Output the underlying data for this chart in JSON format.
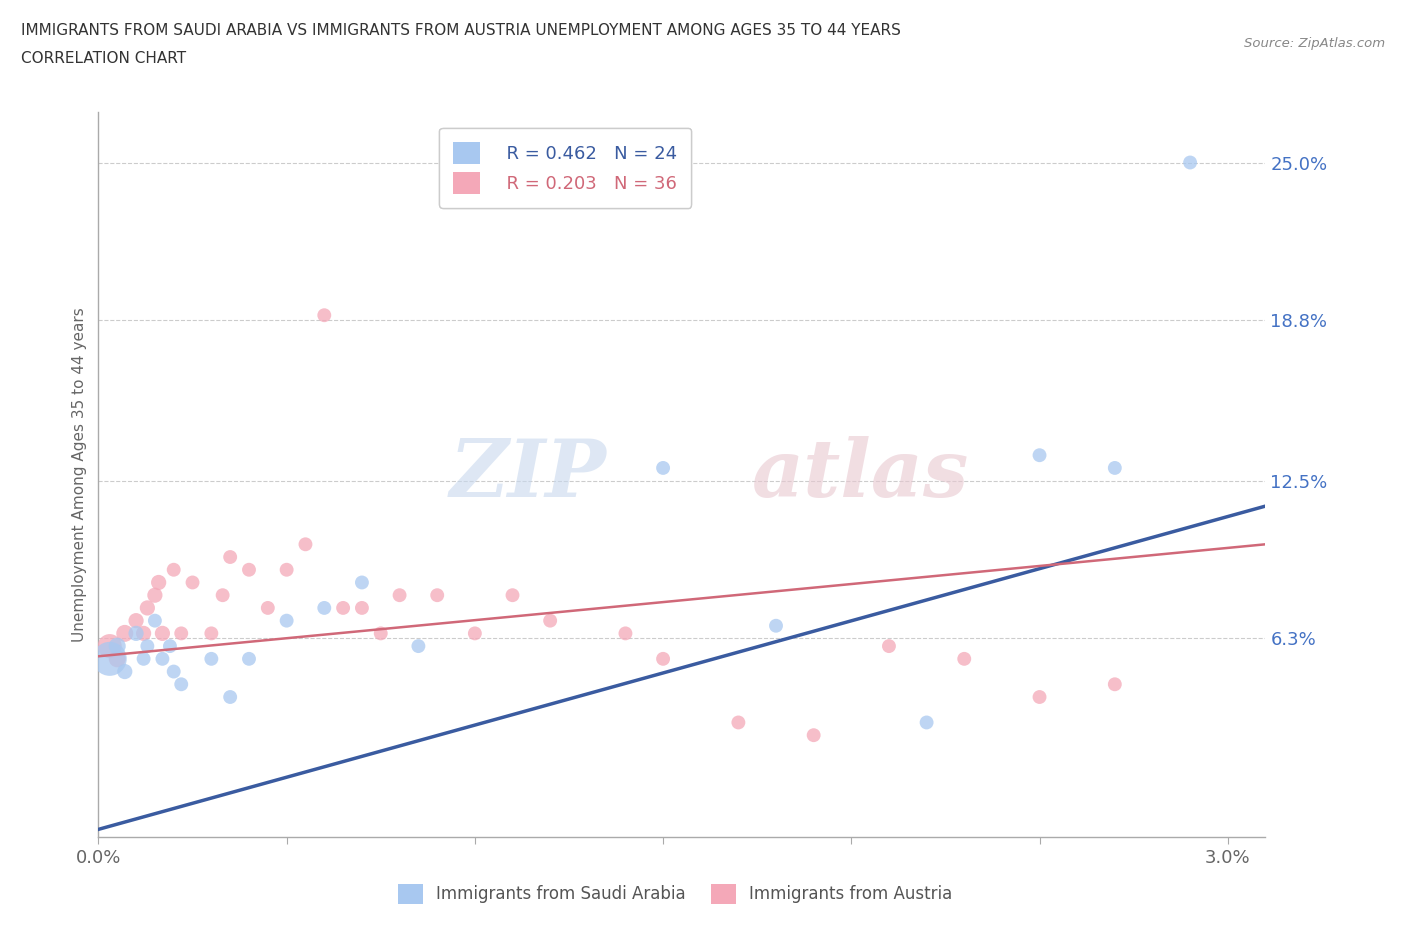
{
  "title_line1": "IMMIGRANTS FROM SAUDI ARABIA VS IMMIGRANTS FROM AUSTRIA UNEMPLOYMENT AMONG AGES 35 TO 44 YEARS",
  "title_line2": "CORRELATION CHART",
  "source_text": "Source: ZipAtlas.com",
  "ylabel": "Unemployment Among Ages 35 to 44 years",
  "xlim": [
    0.0,
    0.031
  ],
  "ylim": [
    -0.015,
    0.27
  ],
  "yticks": [
    0.063,
    0.125,
    0.188,
    0.25
  ],
  "ytick_labels": [
    "6.3%",
    "12.5%",
    "18.8%",
    "25.0%"
  ],
  "xticks": [
    0.0,
    0.005,
    0.01,
    0.015,
    0.02,
    0.025,
    0.03
  ],
  "xtick_labels": [
    "0.0%",
    "",
    "",
    "",
    "",
    "",
    "3.0%"
  ],
  "legend_r1": "R = 0.462   N = 24",
  "legend_r2": "R = 0.203   N = 36",
  "color_saudi": "#A8C8F0",
  "color_austria": "#F4A8B8",
  "color_line_saudi": "#3A5BA0",
  "color_line_austria": "#D06878",
  "saudi_x": [
    0.0003,
    0.0005,
    0.0007,
    0.001,
    0.0012,
    0.0013,
    0.0015,
    0.0017,
    0.0019,
    0.002,
    0.0022,
    0.003,
    0.0035,
    0.004,
    0.005,
    0.006,
    0.007,
    0.0085,
    0.015,
    0.018,
    0.022,
    0.025,
    0.027,
    0.029
  ],
  "saudi_y": [
    0.055,
    0.06,
    0.05,
    0.065,
    0.055,
    0.06,
    0.07,
    0.055,
    0.06,
    0.05,
    0.045,
    0.055,
    0.04,
    0.055,
    0.07,
    0.075,
    0.085,
    0.06,
    0.13,
    0.068,
    0.03,
    0.135,
    0.13,
    0.25
  ],
  "saudi_sizes": [
    600,
    150,
    120,
    120,
    100,
    100,
    100,
    100,
    100,
    100,
    100,
    100,
    100,
    100,
    100,
    100,
    100,
    100,
    100,
    100,
    100,
    100,
    100,
    100
  ],
  "austria_x": [
    0.0003,
    0.0005,
    0.0007,
    0.001,
    0.0012,
    0.0013,
    0.0015,
    0.0016,
    0.0017,
    0.002,
    0.0022,
    0.0025,
    0.003,
    0.0033,
    0.0035,
    0.004,
    0.0045,
    0.005,
    0.0055,
    0.006,
    0.0065,
    0.007,
    0.0075,
    0.008,
    0.009,
    0.01,
    0.011,
    0.012,
    0.014,
    0.015,
    0.017,
    0.019,
    0.021,
    0.023,
    0.025,
    0.027
  ],
  "austria_y": [
    0.06,
    0.055,
    0.065,
    0.07,
    0.065,
    0.075,
    0.08,
    0.085,
    0.065,
    0.09,
    0.065,
    0.085,
    0.065,
    0.08,
    0.095,
    0.09,
    0.075,
    0.09,
    0.1,
    0.19,
    0.075,
    0.075,
    0.065,
    0.08,
    0.08,
    0.065,
    0.08,
    0.07,
    0.065,
    0.055,
    0.03,
    0.025,
    0.06,
    0.055,
    0.04,
    0.045
  ],
  "austria_sizes": [
    300,
    150,
    150,
    120,
    120,
    120,
    120,
    120,
    120,
    100,
    100,
    100,
    100,
    100,
    100,
    100,
    100,
    100,
    100,
    100,
    100,
    100,
    100,
    100,
    100,
    100,
    100,
    100,
    100,
    100,
    100,
    100,
    100,
    100,
    100,
    100
  ]
}
